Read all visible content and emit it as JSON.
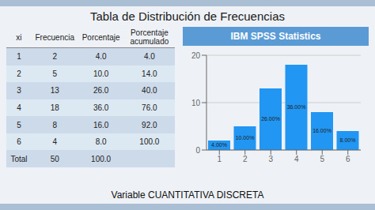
{
  "chart_data": [
    {
      "type": "table",
      "title": "Tabla de Distribución de Frecuencias",
      "subtitle": "Variable CUANTITATIVA DISCRETA",
      "columns": [
        "xi",
        "Frecuencia",
        "Porcentaje",
        "Porcentaje\nacumulado"
      ],
      "rows": [
        [
          "1",
          "2",
          "4.0",
          "4.0"
        ],
        [
          "2",
          "5",
          "10.0",
          "14.0"
        ],
        [
          "3",
          "13",
          "26.0",
          "40.0"
        ],
        [
          "4",
          "18",
          "36.0",
          "76.0"
        ],
        [
          "5",
          "8",
          "16.0",
          "92.0"
        ],
        [
          "6",
          "4",
          "8.0",
          "100.0"
        ],
        [
          "Total",
          "50",
          "100.0",
          ""
        ]
      ]
    },
    {
      "type": "bar",
      "title": "IBM SPSS Statistics",
      "categories": [
        "1",
        "2",
        "3",
        "4",
        "5",
        "6"
      ],
      "values": [
        2,
        5,
        13,
        18,
        8,
        4
      ],
      "value_labels": [
        "4.00%",
        "10.00%",
        "26.00%",
        "36.00%",
        "16.00%",
        "8.00%"
      ],
      "color": "#2196F3",
      "ylim": [
        0,
        20
      ],
      "yticks": [
        0,
        10,
        20
      ],
      "grid": true
    }
  ]
}
